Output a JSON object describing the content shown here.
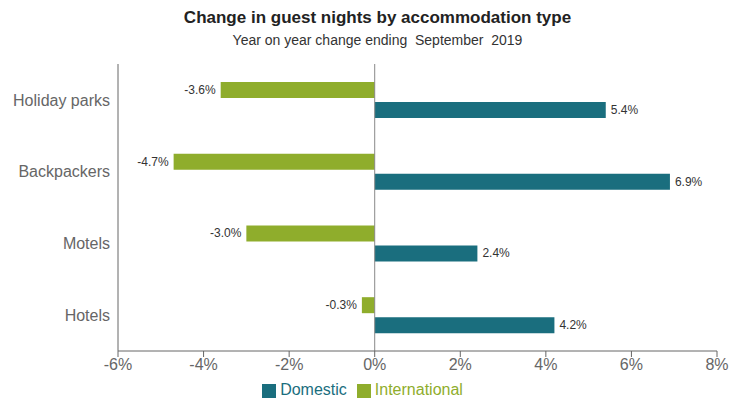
{
  "chart_data": {
    "type": "bar",
    "orientation": "horizontal",
    "title": "Change in guest nights by accommodation type",
    "subtitle": "Year on year change ending  September  2019",
    "categories": [
      "Hotels",
      "Motels",
      "Backpackers",
      "Holiday parks"
    ],
    "series": [
      {
        "name": "International",
        "color": "#8fad2c",
        "values": [
          -0.3,
          -3.0,
          -4.7,
          -3.6
        ],
        "value_labels": [
          "-0.3%",
          "-3.0%",
          "-4.7%",
          "-3.6%"
        ]
      },
      {
        "name": "Domestic",
        "color": "#1a6e7e",
        "values": [
          4.2,
          2.4,
          6.9,
          5.4
        ],
        "value_labels": [
          "4.2%",
          "2.4%",
          "6.9%",
          "5.4%"
        ]
      }
    ],
    "xlim": [
      -6,
      8
    ],
    "xticks": [
      {
        "value": -6,
        "label": "-6%"
      },
      {
        "value": -4,
        "label": "-4%"
      },
      {
        "value": -2,
        "label": "-2%"
      },
      {
        "value": 0,
        "label": "0%"
      },
      {
        "value": 2,
        "label": "2%"
      },
      {
        "value": 4,
        "label": "4%"
      },
      {
        "value": 6,
        "label": "6%"
      },
      {
        "value": 8,
        "label": "8%"
      }
    ],
    "data_labels": true,
    "legend": "bottom",
    "grid": false
  }
}
